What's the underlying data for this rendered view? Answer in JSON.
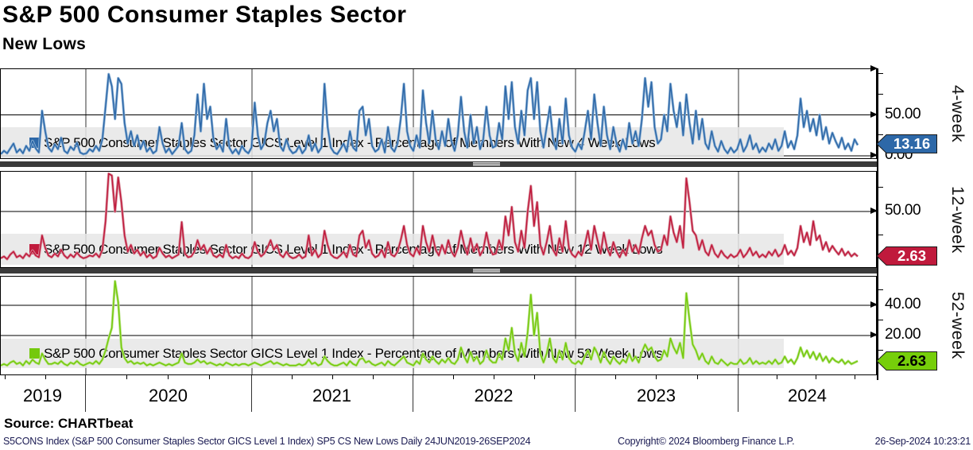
{
  "header": {
    "title": "S&P 500 Consumer Staples Sector",
    "subtitle": "New Lows"
  },
  "x_axis": {
    "years": [
      "2019",
      "2020",
      "2021",
      "2022",
      "2023",
      "2024"
    ],
    "range": "24JUN2019-26SEP2024"
  },
  "footer": {
    "source": "Source: CHARTbeat",
    "ticker_line": "S5CONS Index (S&P 500 Consumer Staples Sector GICS Level 1 Index) SP5 CS New Lows  Daily 24JUN2019-26SEP2024",
    "copyright": "Copyright© 2024 Bloomberg Finance L.P.",
    "timestamp": "26-Sep-2024 10:23:21"
  },
  "chart_data": [
    {
      "type": "line",
      "name": "4-week",
      "legend": "S&P 500 Consumer Staples Sector GICS Level 1 Index - Percentage of Members With New 4 Week Lows",
      "color": "#2d68a8",
      "color_light": "#8fb3d6",
      "tag_bg": "#2d68a8",
      "tag_text": "#ffffff",
      "last_value": 13.16,
      "last_label": "13.16",
      "ticks": [
        {
          "v": 50,
          "label": "50.00"
        },
        {
          "v": 0,
          "label": "0.00"
        }
      ],
      "minor_ticks": [
        25,
        75,
        100
      ],
      "ylim": [
        -5,
        106
      ],
      "x_start": "24JUN2019",
      "x_end": "26SEP2024",
      "frequency": "daily (approximated at ~weekly samples)",
      "grid": true,
      "legend_position": "bottom-left",
      "values": [
        2,
        6,
        3,
        9,
        15,
        4,
        8,
        3,
        12,
        6,
        18,
        9,
        4,
        55,
        30,
        10,
        5,
        14,
        8,
        22,
        6,
        3,
        11,
        7,
        16,
        4,
        2,
        3,
        8,
        5,
        12,
        6,
        20,
        60,
        100,
        85,
        45,
        95,
        88,
        40,
        15,
        30,
        12,
        25,
        8,
        18,
        5,
        10,
        3,
        6,
        35,
        15,
        4,
        9,
        2,
        7,
        12,
        40,
        8,
        3,
        6,
        25,
        75,
        30,
        88,
        45,
        60,
        20,
        8,
        14,
        5,
        45,
        10,
        3,
        8,
        2,
        12,
        6,
        3,
        10,
        65,
        25,
        8,
        15,
        40,
        55,
        30,
        45,
        12,
        6,
        20,
        8,
        3,
        5,
        12,
        3,
        8,
        25,
        6,
        15,
        4,
        10,
        88,
        35,
        10,
        4,
        2,
        8,
        15,
        5,
        30,
        10,
        6,
        55,
        60,
        25,
        45,
        12,
        5,
        8,
        20,
        4,
        35,
        10,
        5,
        15,
        45,
        88,
        30,
        12,
        6,
        25,
        10,
        80,
        40,
        15,
        55,
        20,
        8,
        30,
        12,
        45,
        18,
        6,
        25,
        72,
        30,
        10,
        50,
        15,
        35,
        8,
        20,
        60,
        25,
        10,
        12,
        40,
        20,
        85,
        45,
        90,
        35,
        15,
        55,
        25,
        80,
        95,
        45,
        90,
        30,
        10,
        35,
        60,
        20,
        8,
        45,
        15,
        70,
        25,
        10,
        5,
        15,
        8,
        30,
        55,
        20,
        75,
        40,
        12,
        60,
        25,
        8,
        35,
        15,
        5,
        20,
        8,
        40,
        15,
        30,
        12,
        45,
        95,
        60,
        90,
        35,
        15,
        20,
        50,
        30,
        88,
        55,
        35,
        65,
        25,
        75,
        40,
        15,
        55,
        20,
        45,
        15,
        8,
        30,
        12,
        5,
        18,
        8,
        3,
        10,
        4,
        8,
        20,
        5,
        12,
        25,
        8,
        15,
        4,
        10,
        5,
        15,
        8,
        20,
        6,
        12,
        30,
        10,
        18,
        8,
        25,
        70,
        35,
        55,
        30,
        45,
        25,
        50,
        20,
        35,
        15,
        28,
        18,
        10,
        22,
        8,
        15,
        6,
        20,
        13
      ]
    },
    {
      "type": "line",
      "name": "12-week",
      "legend": "S&P 500 Consumer Staples Sector GICS Level 1 Index - Percentage of Members With New 12 Week Lows",
      "color": "#c01a3c",
      "color_light": "#d893a0",
      "tag_bg": "#c01a3c",
      "tag_text": "#ffffff",
      "last_value": 2.63,
      "last_label": "2.63",
      "ticks": [
        {
          "v": 50,
          "label": "50.00"
        }
      ],
      "minor_ticks": [
        25,
        75
      ],
      "ylim": [
        -10,
        92
      ],
      "x_start": "24JUN2019",
      "x_end": "26SEP2024",
      "frequency": "daily (approximated at ~weekly samples)",
      "grid": true,
      "legend_position": "bottom-left",
      "values": [
        1,
        3,
        0,
        5,
        8,
        2,
        4,
        1,
        6,
        3,
        9,
        4,
        2,
        25,
        12,
        4,
        2,
        6,
        3,
        10,
        4,
        1,
        5,
        2,
        7,
        3,
        1,
        2,
        4,
        3,
        6,
        2,
        10,
        40,
        90,
        88,
        50,
        86,
        60,
        25,
        8,
        15,
        6,
        10,
        4,
        8,
        2,
        5,
        1,
        3,
        12,
        6,
        2,
        4,
        1,
        3,
        5,
        39,
        6,
        2,
        3,
        8,
        20,
        10,
        15,
        6,
        12,
        4,
        2,
        5,
        2,
        15,
        4,
        1,
        3,
        1,
        6,
        2,
        1,
        4,
        18,
        8,
        3,
        6,
        12,
        20,
        10,
        15,
        5,
        2,
        8,
        3,
        1,
        2,
        5,
        1,
        3,
        25,
        4,
        10,
        2,
        6,
        30,
        15,
        5,
        2,
        1,
        4,
        8,
        2,
        15,
        5,
        3,
        25,
        30,
        12,
        20,
        6,
        2,
        4,
        10,
        2,
        18,
        5,
        3,
        8,
        20,
        35,
        15,
        6,
        3,
        12,
        5,
        35,
        18,
        8,
        25,
        10,
        4,
        15,
        6,
        20,
        8,
        3,
        12,
        30,
        15,
        5,
        22,
        8,
        16,
        4,
        10,
        28,
        12,
        5,
        6,
        20,
        10,
        45,
        25,
        55,
        18,
        8,
        30,
        12,
        50,
        77,
        35,
        60,
        15,
        5,
        18,
        35,
        10,
        4,
        22,
        8,
        40,
        12,
        5,
        2,
        8,
        4,
        15,
        30,
        10,
        35,
        20,
        6,
        28,
        12,
        4,
        18,
        8,
        2,
        10,
        4,
        20,
        8,
        15,
        6,
        22,
        35,
        25,
        30,
        15,
        8,
        10,
        25,
        15,
        45,
        28,
        18,
        35,
        12,
        85,
        60,
        30,
        25,
        10,
        20,
        8,
        4,
        15,
        6,
        2,
        9,
        4,
        1,
        5,
        2,
        4,
        10,
        2,
        6,
        12,
        4,
        8,
        2,
        5,
        2,
        8,
        4,
        10,
        3,
        6,
        15,
        5,
        9,
        4,
        12,
        35,
        18,
        28,
        15,
        40,
        20,
        25,
        10,
        18,
        8,
        14,
        9,
        5,
        11,
        4,
        8,
        3,
        6,
        3
      ]
    },
    {
      "type": "line",
      "name": "52-week",
      "legend": "S&P 500 Consumer Staples Sector GICS Level 1 Index - Percentage of Members With New 52 Week Lows",
      "color": "#74c90c",
      "color_light": "#bce48c",
      "tag_bg": "#76ce0a",
      "tag_text": "#000000",
      "last_value": 2.63,
      "last_label": "2.63",
      "ticks": [
        {
          "v": 40,
          "label": "40.00"
        },
        {
          "v": 20,
          "label": "20.00"
        }
      ],
      "minor_ticks": [
        10,
        30,
        50
      ],
      "ylim": [
        -7,
        59
      ],
      "x_start": "24JUN2019",
      "x_end": "26SEP2024",
      "frequency": "daily (approximated at ~weekly samples)",
      "grid": true,
      "legend_position": "bottom-left",
      "values": [
        0,
        1,
        0,
        2,
        3,
        1,
        2,
        0,
        3,
        1,
        4,
        2,
        1,
        8,
        4,
        1,
        1,
        2,
        1,
        3,
        1,
        0,
        2,
        1,
        3,
        1,
        0,
        1,
        2,
        1,
        3,
        1,
        4,
        10,
        18,
        25,
        56,
        42,
        12,
        5,
        2,
        3,
        1,
        2,
        1,
        2,
        0,
        1,
        0,
        1,
        2,
        1,
        0,
        1,
        0,
        1,
        2,
        8,
        2,
        1,
        1,
        2,
        4,
        2,
        3,
        1,
        2,
        1,
        0,
        1,
        0,
        2,
        1,
        0,
        1,
        0,
        1,
        1,
        0,
        1,
        2,
        1,
        0,
        1,
        2,
        3,
        1,
        2,
        1,
        0,
        1,
        0,
        0,
        0,
        1,
        0,
        1,
        4,
        1,
        2,
        0,
        1,
        6,
        3,
        1,
        0,
        0,
        1,
        2,
        0,
        3,
        1,
        0,
        4,
        5,
        2,
        3,
        1,
        0,
        1,
        2,
        0,
        3,
        1,
        0,
        2,
        4,
        6,
        2,
        1,
        0,
        3,
        1,
        8,
        4,
        2,
        6,
        3,
        1,
        4,
        2,
        5,
        2,
        1,
        4,
        12,
        6,
        2,
        9,
        3,
        6,
        1,
        3,
        10,
        4,
        2,
        2,
        8,
        4,
        18,
        10,
        25,
        8,
        3,
        15,
        6,
        22,
        47,
        20,
        35,
        8,
        2,
        8,
        18,
        5,
        2,
        10,
        4,
        15,
        5,
        2,
        1,
        3,
        1,
        6,
        10,
        4,
        12,
        8,
        2,
        9,
        4,
        1,
        6,
        3,
        1,
        4,
        2,
        8,
        3,
        6,
        2,
        9,
        14,
        10,
        12,
        6,
        3,
        4,
        10,
        6,
        18,
        12,
        8,
        15,
        5,
        48,
        30,
        14,
        10,
        4,
        8,
        3,
        1,
        6,
        2,
        1,
        4,
        2,
        0,
        2,
        1,
        1,
        4,
        1,
        2,
        5,
        1,
        3,
        1,
        2,
        1,
        3,
        1,
        4,
        1,
        2,
        6,
        2,
        4,
        1,
        5,
        12,
        6,
        10,
        5,
        9,
        4,
        8,
        3,
        6,
        2,
        5,
        3,
        2,
        4,
        1,
        3,
        1,
        2,
        3
      ]
    }
  ]
}
